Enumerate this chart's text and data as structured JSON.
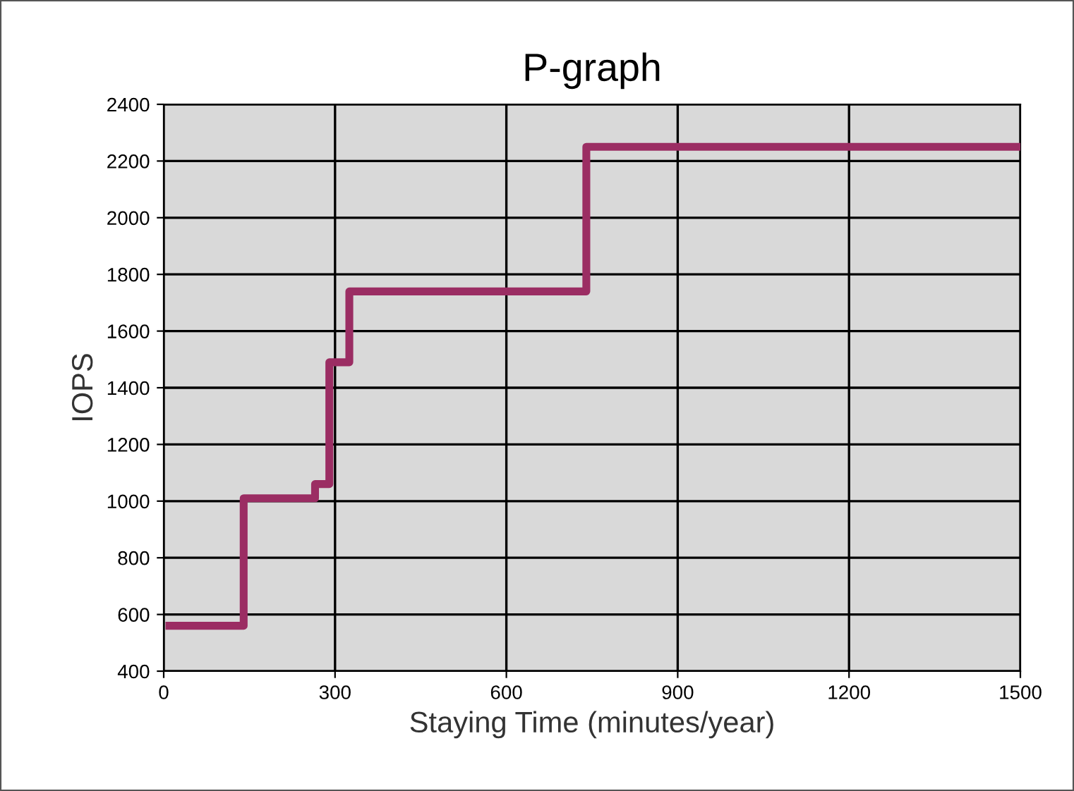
{
  "chart_data": {
    "type": "step",
    "title": "P-graph",
    "xlabel": "Staying Time (minutes/year)",
    "ylabel": "IOPS",
    "x": [
      10,
      140,
      265,
      290,
      325,
      740,
      1500
    ],
    "series": [
      {
        "color": "#9b2d63",
        "values": [
          560,
          1010,
          1060,
          1490,
          1740,
          2250,
          2250
        ]
      }
    ],
    "xlim": [
      0,
      1500
    ],
    "xticks": [
      0,
      300,
      600,
      900,
      1200,
      1500
    ],
    "ylim": [
      400,
      2400
    ],
    "yticks": [
      400,
      600,
      800,
      1000,
      1200,
      1400,
      1600,
      1800,
      2000,
      2200,
      2400
    ],
    "grid": true,
    "marker": "none",
    "line_style": "solid"
  }
}
